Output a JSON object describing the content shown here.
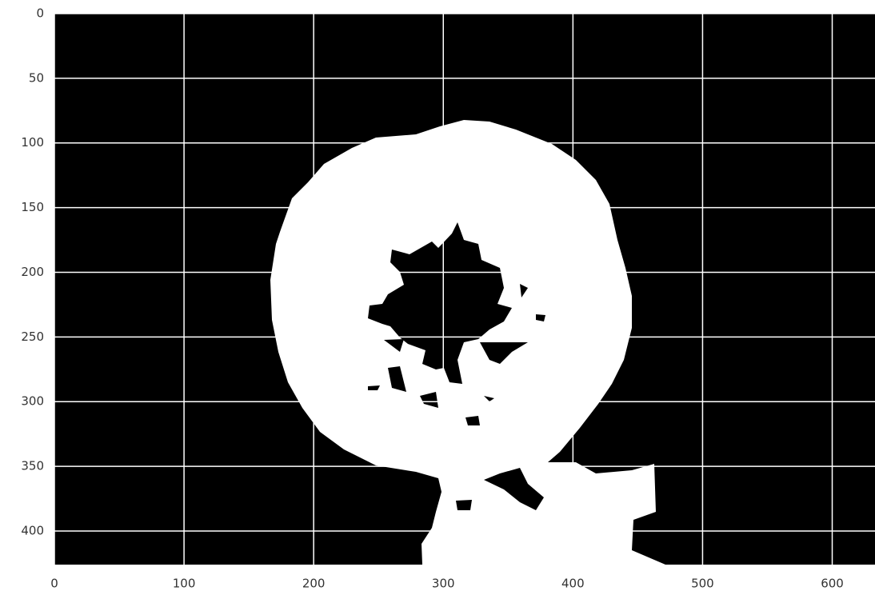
{
  "chart_data": {
    "type": "image",
    "xlim": [
      0,
      633
    ],
    "ylim": [
      426,
      0
    ],
    "xticks": [
      0,
      100,
      200,
      300,
      400,
      500,
      600
    ],
    "yticks": [
      0,
      50,
      100,
      150,
      200,
      250,
      300,
      350,
      400
    ],
    "grid": true
  }
}
